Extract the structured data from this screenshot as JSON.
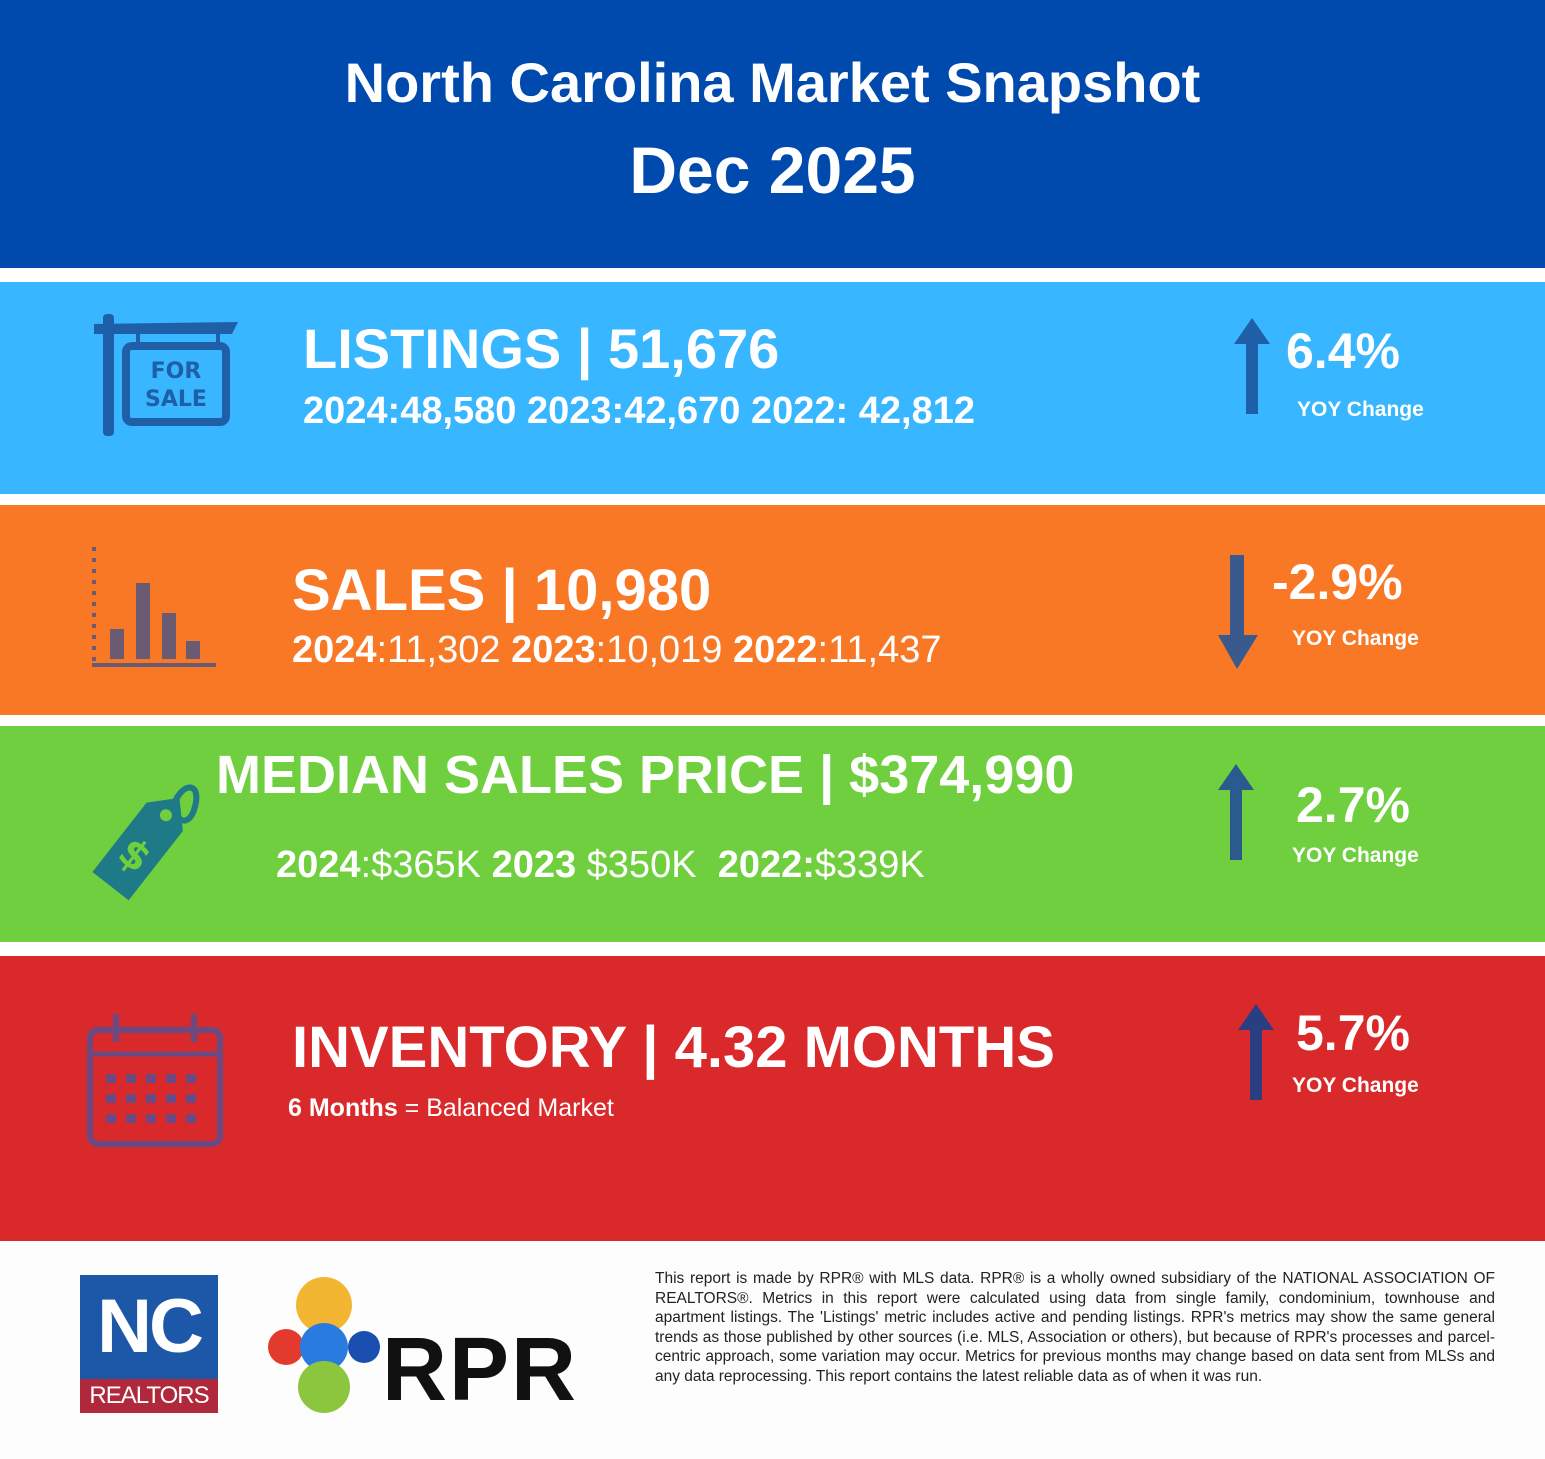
{
  "header": {
    "title": "North Carolina Market Snapshot",
    "date": "Dec 2025"
  },
  "listings": {
    "title": "LISTINGS | 51,676",
    "history": [
      {
        "year": "2024:",
        "value": "48,580"
      },
      {
        "year": "2023:",
        "value": "42,670"
      },
      {
        "year": "2022:",
        "value": " 42,812"
      }
    ],
    "icon": "for-sale-sign-icon",
    "sign_text_1": "FOR",
    "sign_text_2": "SALE",
    "change": "6.4%",
    "change_label": "YOY Change",
    "direction": "up",
    "color": "#38b6ff"
  },
  "sales": {
    "title": "SALES | 10,980",
    "history": [
      {
        "year": "2024",
        "value": ":11,302"
      },
      {
        "year": "2023",
        "value": ":10,019"
      },
      {
        "year": "2022",
        "value": ":11,437"
      }
    ],
    "icon": "bar-chart-icon",
    "change": "-2.9%",
    "change_label": "YOY Change",
    "direction": "down",
    "color": "#f97826"
  },
  "median_price": {
    "title": "MEDIAN SALES PRICE | $374,990",
    "history": [
      {
        "year": "2024",
        "value": ":$365K"
      },
      {
        "year": "2023",
        "value": " $350K"
      },
      {
        "year": "2022:",
        "value": "$339K"
      }
    ],
    "icon": "price-tag-icon",
    "change": "2.7%",
    "change_label": "YOY Change",
    "direction": "up",
    "color": "#6fcf3f"
  },
  "inventory": {
    "title": "INVENTORY | 4.32 MONTHS",
    "note_bold": "6 Months",
    "note_rest": " = Balanced Market",
    "icon": "calendar-icon",
    "change": "5.7%",
    "change_label": "YOY Change",
    "direction": "up",
    "color": "#d9292b"
  },
  "footer": {
    "nc_logo_top": "NC",
    "nc_logo_bottom": "REALTORS",
    "rpr_logo": "RPR",
    "disclaimer": "This report is made by RPR® with MLS data. RPR® is a wholly owned subsidiary of the NATIONAL ASSOCIATION OF REALTORS®. Metrics in this report were calculated using data from single family, condominium, townhouse and apartment listings. The 'Listings' metric includes active and pending listings. RPR's metrics may show the same general trends as those published by other sources (i.e. MLS, Association or others), but because of RPR's processes and parcel-centric approach, some variation may occur. Metrics for previous months may change based on data sent from MLSs and any data reprocessing. This report contains the latest reliable data as of when it was run."
  }
}
